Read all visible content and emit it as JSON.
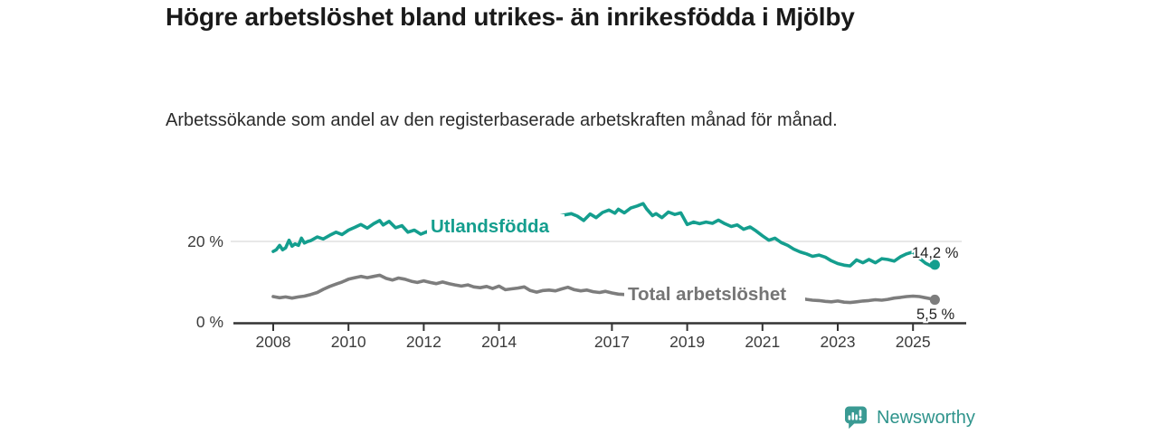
{
  "header": {
    "title": "Högre arbetslöshet bland utrikes- än inrikesfödda i Mjölby",
    "subtitle": "Arbetssökande som andel av den registerbaserade arbetskraften månad för månad."
  },
  "footer": {
    "brand": "Newsworthy",
    "logo_icon": "newsworthy-pin-with-bar-chart-and-exclamation"
  },
  "colors": {
    "foreign_born_line": "#149e8e",
    "total_line": "#7d7d7d",
    "total_label": "#757575",
    "axis": "#333333",
    "tick_text": "#3c3c3c",
    "grid": "#d9d9d9",
    "value_text": "#1f1f1f",
    "brand_teal": "#2f948c",
    "background": "#ffffff"
  },
  "chart_data": {
    "type": "line",
    "title": "Högre arbetslöshet bland utrikes- än inrikesfödda i Mjölby",
    "subtitle": "Arbetssökande som andel av den registerbaserade arbetskraften månad för månad.",
    "unit": "%",
    "x_tick_years": [
      2008,
      2010,
      2012,
      2014,
      2017,
      2019,
      2021,
      2023,
      2025
    ],
    "y_ticks": [
      {
        "value": 0,
        "label": "0 %"
      },
      {
        "value": 20,
        "label": "20 %"
      }
    ],
    "gridlines": [
      20
    ],
    "xlim": [
      2006.9,
      2026.4
    ],
    "ylim": [
      0,
      33
    ],
    "legend_position": "inline-labels",
    "series": [
      {
        "name": "Utlandsfödda",
        "end_label": "14,2 %",
        "end_value": 14.2,
        "points": [
          [
            2008.0,
            17.5
          ],
          [
            2008.08,
            17.9
          ],
          [
            2008.17,
            19.0
          ],
          [
            2008.25,
            17.9
          ],
          [
            2008.33,
            18.4
          ],
          [
            2008.42,
            20.3
          ],
          [
            2008.5,
            18.8
          ],
          [
            2008.58,
            19.4
          ],
          [
            2008.67,
            19.0
          ],
          [
            2008.75,
            20.8
          ],
          [
            2008.83,
            19.6
          ],
          [
            2008.92,
            20.0
          ],
          [
            2009.0,
            20.2
          ],
          [
            2009.17,
            21.1
          ],
          [
            2009.33,
            20.6
          ],
          [
            2009.5,
            21.5
          ],
          [
            2009.67,
            22.3
          ],
          [
            2009.83,
            21.7
          ],
          [
            2010.0,
            22.8
          ],
          [
            2010.17,
            23.5
          ],
          [
            2010.33,
            24.2
          ],
          [
            2010.5,
            23.3
          ],
          [
            2010.67,
            24.4
          ],
          [
            2010.83,
            25.2
          ],
          [
            2010.92,
            24.1
          ],
          [
            2011.08,
            25.0
          ],
          [
            2011.25,
            23.4
          ],
          [
            2011.42,
            23.9
          ],
          [
            2011.58,
            22.3
          ],
          [
            2011.75,
            22.8
          ],
          [
            2011.92,
            21.8
          ],
          [
            2012.08,
            22.4
          ],
          [
            2012.25,
            21.4
          ],
          [
            2012.42,
            22.0
          ],
          [
            2012.58,
            21.3
          ],
          [
            2012.75,
            21.7
          ],
          [
            2012.92,
            21.4
          ],
          [
            2013.08,
            21.8
          ],
          [
            2013.25,
            21.3
          ],
          [
            2013.42,
            21.6
          ],
          [
            2013.58,
            21.9
          ],
          [
            2013.75,
            22.2
          ],
          [
            2014.0,
            22.7
          ],
          [
            2014.25,
            23.3
          ],
          [
            2014.5,
            23.9
          ],
          [
            2014.75,
            24.5
          ],
          [
            2015.0,
            25.1
          ],
          [
            2015.25,
            25.6
          ],
          [
            2015.5,
            26.1
          ],
          [
            2015.75,
            26.6
          ],
          [
            2015.92,
            26.9
          ],
          [
            2016.08,
            26.3
          ],
          [
            2016.25,
            25.2
          ],
          [
            2016.42,
            26.8
          ],
          [
            2016.58,
            25.9
          ],
          [
            2016.75,
            27.2
          ],
          [
            2016.92,
            27.8
          ],
          [
            2017.08,
            27.0
          ],
          [
            2017.17,
            28.0
          ],
          [
            2017.33,
            27.1
          ],
          [
            2017.5,
            28.3
          ],
          [
            2017.67,
            28.8
          ],
          [
            2017.83,
            29.4
          ],
          [
            2017.92,
            28.1
          ],
          [
            2018.08,
            26.4
          ],
          [
            2018.17,
            26.9
          ],
          [
            2018.33,
            25.9
          ],
          [
            2018.5,
            27.3
          ],
          [
            2018.67,
            26.7
          ],
          [
            2018.83,
            27.1
          ],
          [
            2019.0,
            24.2
          ],
          [
            2019.17,
            24.8
          ],
          [
            2019.33,
            24.4
          ],
          [
            2019.5,
            24.8
          ],
          [
            2019.67,
            24.5
          ],
          [
            2019.83,
            25.3
          ],
          [
            2020.0,
            24.4
          ],
          [
            2020.17,
            23.7
          ],
          [
            2020.33,
            24.1
          ],
          [
            2020.5,
            23.0
          ],
          [
            2020.67,
            23.6
          ],
          [
            2020.83,
            22.6
          ],
          [
            2021.0,
            21.4
          ],
          [
            2021.17,
            20.3
          ],
          [
            2021.33,
            20.8
          ],
          [
            2021.5,
            19.7
          ],
          [
            2021.67,
            19.0
          ],
          [
            2021.83,
            18.1
          ],
          [
            2022.0,
            17.4
          ],
          [
            2022.17,
            16.9
          ],
          [
            2022.33,
            16.3
          ],
          [
            2022.5,
            16.6
          ],
          [
            2022.67,
            16.1
          ],
          [
            2022.83,
            15.2
          ],
          [
            2023.0,
            14.5
          ],
          [
            2023.17,
            14.1
          ],
          [
            2023.33,
            13.9
          ],
          [
            2023.5,
            15.4
          ],
          [
            2023.67,
            14.7
          ],
          [
            2023.83,
            15.5
          ],
          [
            2024.0,
            14.7
          ],
          [
            2024.17,
            15.7
          ],
          [
            2024.33,
            15.5
          ],
          [
            2024.5,
            15.1
          ],
          [
            2024.67,
            16.2
          ],
          [
            2024.83,
            16.9
          ],
          [
            2025.0,
            17.4
          ],
          [
            2025.17,
            15.8
          ],
          [
            2025.33,
            14.6
          ],
          [
            2025.5,
            13.8
          ],
          [
            2025.58,
            14.2
          ]
        ]
      },
      {
        "name": "Total arbetslöshet",
        "end_label": "5,5 %",
        "end_value": 5.5,
        "points": [
          [
            2008.0,
            6.3
          ],
          [
            2008.17,
            6.0
          ],
          [
            2008.33,
            6.2
          ],
          [
            2008.5,
            5.9
          ],
          [
            2008.67,
            6.2
          ],
          [
            2008.83,
            6.4
          ],
          [
            2009.0,
            6.8
          ],
          [
            2009.17,
            7.3
          ],
          [
            2009.33,
            8.1
          ],
          [
            2009.5,
            8.8
          ],
          [
            2009.67,
            9.4
          ],
          [
            2009.83,
            9.9
          ],
          [
            2010.0,
            10.6
          ],
          [
            2010.17,
            11.0
          ],
          [
            2010.33,
            11.3
          ],
          [
            2010.5,
            11.0
          ],
          [
            2010.67,
            11.3
          ],
          [
            2010.83,
            11.6
          ],
          [
            2011.0,
            10.8
          ],
          [
            2011.17,
            10.4
          ],
          [
            2011.33,
            10.9
          ],
          [
            2011.5,
            10.6
          ],
          [
            2011.67,
            10.1
          ],
          [
            2011.83,
            9.8
          ],
          [
            2012.0,
            10.2
          ],
          [
            2012.17,
            9.8
          ],
          [
            2012.33,
            9.5
          ],
          [
            2012.5,
            9.9
          ],
          [
            2012.67,
            9.5
          ],
          [
            2012.83,
            9.2
          ],
          [
            2013.0,
            8.9
          ],
          [
            2013.17,
            9.2
          ],
          [
            2013.33,
            8.7
          ],
          [
            2013.5,
            8.5
          ],
          [
            2013.67,
            8.8
          ],
          [
            2013.83,
            8.3
          ],
          [
            2014.0,
            8.9
          ],
          [
            2014.17,
            8.0
          ],
          [
            2014.33,
            8.2
          ],
          [
            2014.5,
            8.4
          ],
          [
            2014.67,
            8.7
          ],
          [
            2014.83,
            7.8
          ],
          [
            2015.0,
            7.4
          ],
          [
            2015.17,
            7.8
          ],
          [
            2015.33,
            7.9
          ],
          [
            2015.5,
            7.7
          ],
          [
            2015.67,
            8.2
          ],
          [
            2015.83,
            8.6
          ],
          [
            2016.0,
            8.0
          ],
          [
            2016.17,
            7.7
          ],
          [
            2016.33,
            7.9
          ],
          [
            2016.5,
            7.5
          ],
          [
            2016.67,
            7.3
          ],
          [
            2016.83,
            7.6
          ],
          [
            2017.0,
            7.2
          ],
          [
            2017.17,
            6.9
          ],
          [
            2017.33,
            6.8
          ],
          [
            2017.67,
            6.7
          ],
          [
            2018.0,
            6.5
          ],
          [
            2018.5,
            6.4
          ],
          [
            2019.0,
            6.3
          ],
          [
            2019.5,
            6.5
          ],
          [
            2020.0,
            7.3
          ],
          [
            2020.25,
            7.9
          ],
          [
            2020.5,
            7.7
          ],
          [
            2020.75,
            7.5
          ],
          [
            2021.0,
            7.1
          ],
          [
            2021.5,
            6.5
          ],
          [
            2022.0,
            5.9
          ],
          [
            2022.17,
            5.6
          ],
          [
            2022.33,
            5.4
          ],
          [
            2022.5,
            5.3
          ],
          [
            2022.67,
            5.1
          ],
          [
            2022.83,
            5.0
          ],
          [
            2023.0,
            5.2
          ],
          [
            2023.17,
            4.9
          ],
          [
            2023.33,
            4.8
          ],
          [
            2023.5,
            5.0
          ],
          [
            2023.67,
            5.2
          ],
          [
            2023.83,
            5.3
          ],
          [
            2024.0,
            5.5
          ],
          [
            2024.17,
            5.4
          ],
          [
            2024.33,
            5.6
          ],
          [
            2024.5,
            5.9
          ],
          [
            2024.67,
            6.1
          ],
          [
            2024.83,
            6.3
          ],
          [
            2025.0,
            6.4
          ],
          [
            2025.17,
            6.3
          ],
          [
            2025.33,
            6.0
          ],
          [
            2025.5,
            5.7
          ],
          [
            2025.58,
            5.5
          ]
        ]
      }
    ]
  }
}
